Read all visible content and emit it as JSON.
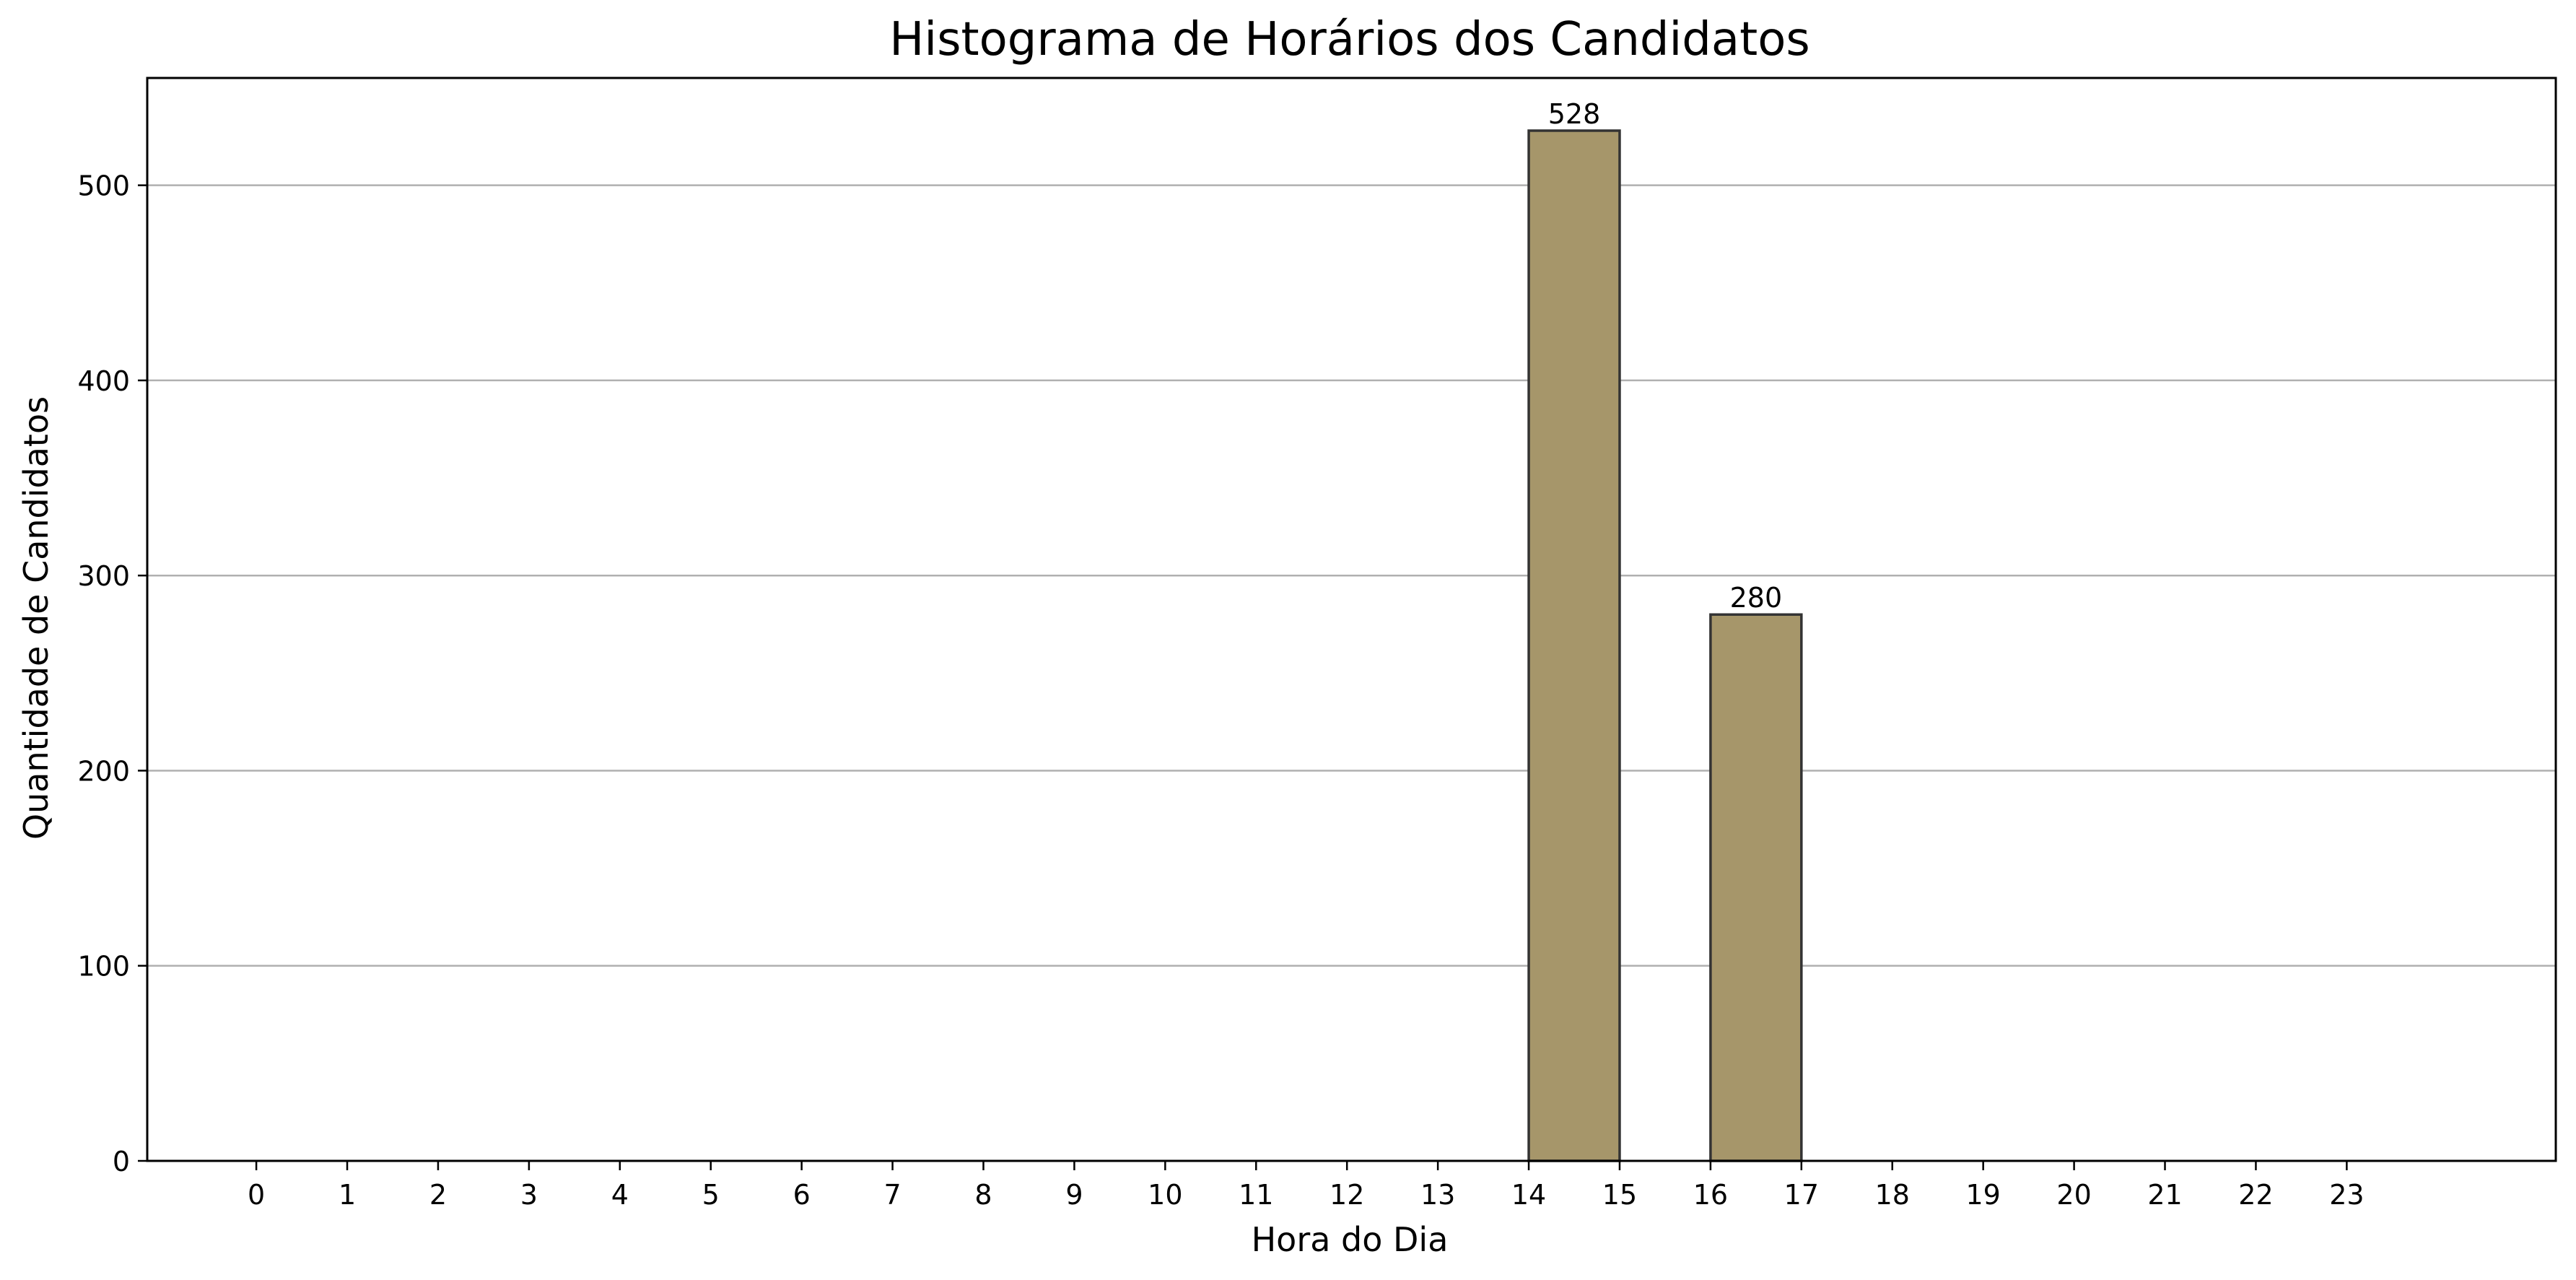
{
  "chart_data": {
    "type": "bar",
    "title": "Histograma de Horários dos Candidatos",
    "xlabel": "Hora do Dia",
    "ylabel": "Quantidade de Candidatos",
    "categories": [
      "0",
      "1",
      "2",
      "3",
      "4",
      "5",
      "6",
      "7",
      "8",
      "9",
      "10",
      "11",
      "12",
      "13",
      "14",
      "15",
      "16",
      "17",
      "18",
      "19",
      "20",
      "21",
      "22",
      "23"
    ],
    "bars": [
      {
        "from": 14,
        "to": 15,
        "value": 528,
        "label": "528"
      },
      {
        "from": 16,
        "to": 17,
        "value": 280,
        "label": "280"
      }
    ],
    "xlim": [
      -1.2,
      25.3
    ],
    "ylim": [
      0,
      555
    ],
    "yticks": [
      0,
      100,
      200,
      300,
      400,
      500
    ],
    "xticks": [
      0,
      1,
      2,
      3,
      4,
      5,
      6,
      7,
      8,
      9,
      10,
      11,
      12,
      13,
      14,
      15,
      16,
      17,
      18,
      19,
      20,
      21,
      22,
      23
    ],
    "baseline_extent": [
      0,
      24
    ],
    "grid": "horizontal",
    "legend": "none",
    "colors": {
      "bar_fill": "#a6966a",
      "bar_edge": "#333333",
      "grid": "#b0b0b0",
      "axes": "#000000"
    }
  }
}
